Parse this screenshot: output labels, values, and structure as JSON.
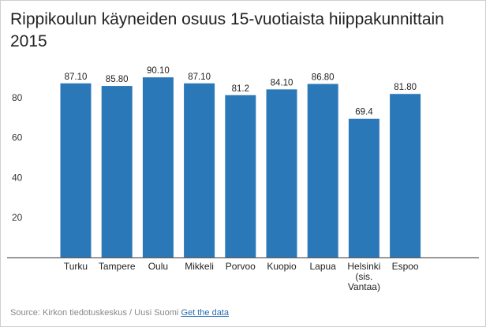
{
  "chart_data": {
    "type": "bar",
    "title": "Rippikoulun käyneiden osuus 15-vuotiaista hiippakunnittain 2015",
    "xlabel": "",
    "ylabel": "",
    "categories": [
      "Turku",
      "Tampere",
      "Oulu",
      "Mikkeli",
      "Porvoo",
      "Kuopio",
      "Lapua",
      "Helsinki (sis. Vantaa)",
      "Espoo"
    ],
    "category_lines": [
      [
        "Turku"
      ],
      [
        "Tampere"
      ],
      [
        "Oulu"
      ],
      [
        "Mikkeli"
      ],
      [
        "Porvoo"
      ],
      [
        "Kuopio"
      ],
      [
        "Lapua"
      ],
      [
        "Helsinki",
        "(sis.",
        "Vantaa)"
      ],
      [
        "Espoo"
      ]
    ],
    "values": [
      87.1,
      85.8,
      90.1,
      87.1,
      81.2,
      84.1,
      86.8,
      69.4,
      81.8
    ],
    "value_labels": [
      "87.10",
      "85.80",
      "90.10",
      "87.10",
      "81.2",
      "84.10",
      "86.80",
      "69.4",
      "81.80"
    ],
    "ylim": [
      0,
      100
    ],
    "yticks": [
      20,
      40,
      60,
      80
    ],
    "grid": false,
    "bar_color": "#2b78b9"
  },
  "source": {
    "text": "Source: Kirkon tiedotuskeskus / Uusi Suomi",
    "link_label": "Get the data"
  }
}
